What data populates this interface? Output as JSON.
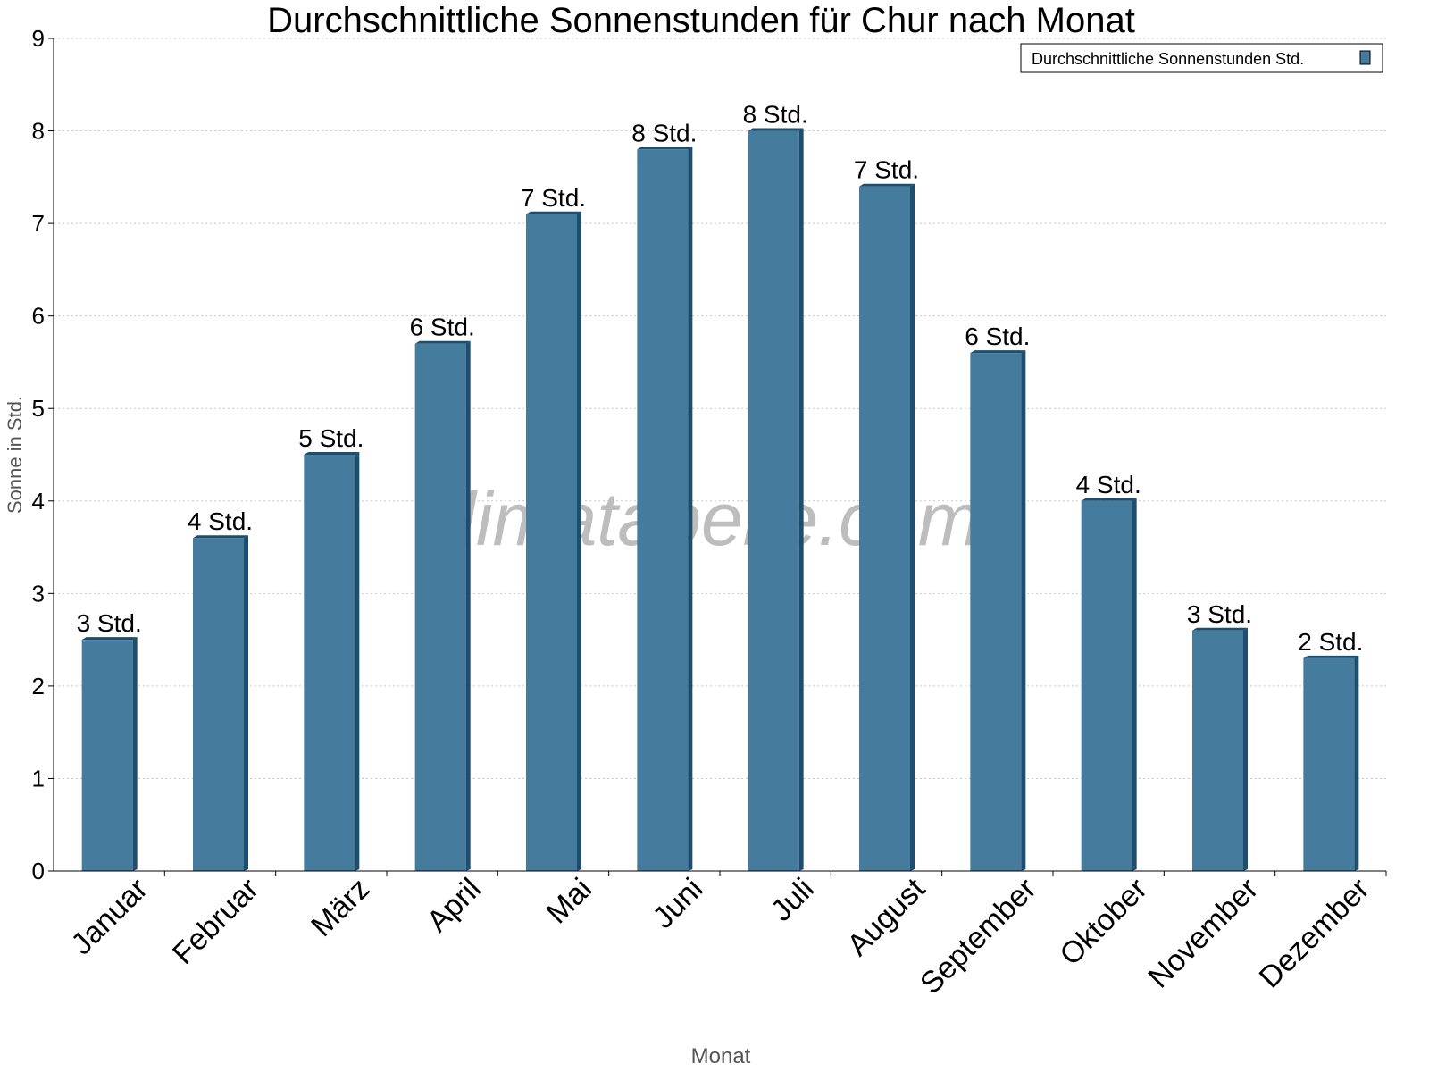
{
  "chart_data": {
    "type": "bar",
    "title": "Durchschnittliche Sonnenstunden für Chur nach Monat",
    "xlabel": "Monat",
    "ylabel": "Sonne in Std.",
    "ylim": [
      0,
      9
    ],
    "yticks": [
      "0",
      "1",
      "2",
      "3",
      "4",
      "5",
      "6",
      "7",
      "8",
      "9"
    ],
    "grid": true,
    "legend_placement": "top-right",
    "categories": [
      "Januar",
      "Februar",
      "März",
      "April",
      "Mai",
      "Juni",
      "Juli",
      "August",
      "September",
      "Oktober",
      "November",
      "Dezember"
    ],
    "series": [
      {
        "name": "Durchschnittliche Sonnenstunden Std.",
        "color": "#457b9d",
        "values": [
          2.5,
          3.6,
          4.5,
          5.7,
          7.1,
          7.8,
          8.0,
          7.4,
          5.6,
          4.0,
          2.6,
          2.3
        ],
        "data_labels": [
          "3 Std.",
          "4 Std.",
          "5 Std.",
          "6 Std.",
          "7 Std.",
          "8 Std.",
          "8 Std.",
          "7 Std.",
          "6 Std.",
          "4 Std.",
          "3 Std.",
          "2 Std."
        ]
      }
    ],
    "watermark": "klimatabelle.com"
  }
}
